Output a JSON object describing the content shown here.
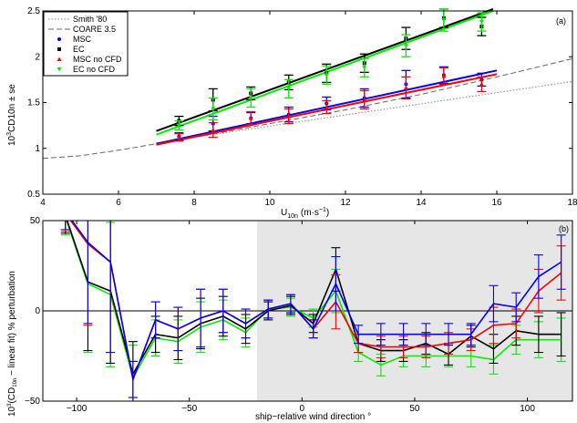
{
  "chart_data": [
    {
      "type": "line",
      "panel_label": "(a)",
      "xlabel": "U10n (m·s−1)",
      "xlabel_main": "U",
      "xlabel_sub": "10n",
      "xlabel_unit": "(m·s",
      "xlabel_unit_sup": "−1",
      "xlabel_close": ")",
      "ylabel": "10^3CD10n ± se",
      "ylabel_prefix": "10",
      "ylabel_sup": "3",
      "ylabel_rest": "CD10n ± se",
      "xlim": [
        4,
        18
      ],
      "ylim": [
        0.5,
        2.5
      ],
      "xticks": [
        "4",
        "6",
        "8",
        "10",
        "12",
        "14",
        "16",
        "18"
      ],
      "yticks": [
        "0.5",
        "1",
        "1.5",
        "2",
        "2.5"
      ],
      "grid": false,
      "legend_position": "top-left",
      "legend": [
        "Smith '80",
        "COARE 3.5",
        "MSC",
        "EC",
        "MSC no CFD",
        "EC no CFD"
      ],
      "colors": {
        "Smith '80": "#888888",
        "COARE 3.5": "#666666",
        "MSC": "#0000ff",
        "EC": "#000000",
        "MSC no CFD": "#ff0000",
        "EC no CFD": "#00ee00"
      },
      "reference_curves": [
        {
          "name": "Smith '80",
          "style": "dotted",
          "x": [
            7,
            18
          ],
          "y": [
            1.06,
            1.73
          ]
        },
        {
          "name": "COARE 3.5",
          "style": "dashed",
          "x": [
            4,
            5,
            6,
            7,
            8,
            10,
            12,
            14,
            16,
            18
          ],
          "y": [
            0.89,
            0.92,
            0.98,
            1.05,
            1.12,
            1.27,
            1.42,
            1.59,
            1.78,
            1.98
          ]
        }
      ],
      "fit_lines": [
        {
          "name": "EC",
          "x": [
            7,
            15.9
          ],
          "y": [
            1.19,
            2.52
          ]
        },
        {
          "name": "EC no CFD",
          "x": [
            7,
            15.9
          ],
          "y": [
            1.15,
            2.5
          ]
        },
        {
          "name": "MSC",
          "x": [
            7,
            16
          ],
          "y": [
            1.05,
            1.85
          ]
        },
        {
          "name": "MSC no CFD",
          "x": [
            7,
            16
          ],
          "y": [
            1.04,
            1.81
          ]
        }
      ],
      "series": [
        {
          "name": "MSC",
          "x": [
            7.6,
            8.5,
            9.5,
            10.5,
            11.5,
            12.5,
            13.6,
            14.6,
            15.6
          ],
          "y": [
            1.13,
            1.27,
            1.33,
            1.37,
            1.49,
            1.55,
            1.7,
            1.8,
            1.75
          ],
          "err": [
            0.04,
            0.08,
            0.06,
            0.08,
            0.07,
            0.1,
            0.15,
            0.09,
            0.07
          ]
        },
        {
          "name": "EC",
          "x": [
            7.6,
            8.5,
            9.5,
            10.5,
            11.5,
            12.5,
            13.6,
            14.6,
            15.6
          ],
          "y": [
            1.3,
            1.53,
            1.6,
            1.72,
            1.82,
            1.93,
            2.2,
            2.42,
            2.33
          ],
          "err": [
            0.05,
            0.12,
            0.07,
            0.08,
            0.1,
            0.1,
            0.12,
            0.1,
            0.1
          ]
        },
        {
          "name": "MSC no CFD",
          "x": [
            7.6,
            8.5,
            9.5,
            10.5,
            11.5,
            12.5,
            13.6,
            14.6,
            15.6
          ],
          "y": [
            1.12,
            1.2,
            1.33,
            1.35,
            1.45,
            1.53,
            1.66,
            1.79,
            1.7
          ],
          "err": [
            0.04,
            0.08,
            0.07,
            0.08,
            0.07,
            0.1,
            0.12,
            0.09,
            0.08
          ]
        },
        {
          "name": "EC no CFD",
          "x": [
            7.6,
            8.5,
            9.5,
            10.5,
            11.5,
            12.5,
            13.6,
            14.6,
            15.6
          ],
          "y": [
            1.25,
            1.43,
            1.55,
            1.65,
            1.8,
            1.88,
            2.12,
            2.4,
            2.38
          ],
          "err": [
            0.05,
            0.12,
            0.1,
            0.1,
            0.1,
            0.1,
            0.12,
            0.12,
            0.1
          ]
        }
      ]
    },
    {
      "type": "line",
      "panel_label": "(b)",
      "xlabel": "ship−relative wind direction °",
      "ylabel": "10^3(CD10n − linear fit) % perturbation",
      "ylabel_prefix": "10",
      "ylabel_sup": "3",
      "ylabel_rest_a": "(CD",
      "ylabel_sub": "10n",
      "ylabel_rest_b": " − linear fit) % perturbation",
      "xlim": [
        -115,
        120
      ],
      "ylim": [
        -50,
        50
      ],
      "xticks": [
        -100,
        -50,
        0,
        50,
        100
      ],
      "yticks": [
        -50,
        0,
        50
      ],
      "grid": false,
      "shaded_region_x": [
        -20,
        120
      ],
      "shaded_color": "#e6e6e6",
      "zero_line": true,
      "colors": {
        "MSC": "#0000ff",
        "MSC no CFD": "#ff0000",
        "EC": "#000000",
        "EC no CFD": "#00ee00"
      },
      "x": [
        -105,
        -95,
        -85,
        -75,
        -65,
        -55,
        -45,
        -35,
        -25,
        -15,
        -5,
        5,
        15,
        25,
        35,
        45,
        55,
        65,
        75,
        85,
        95,
        105,
        115
      ],
      "series": [
        {
          "name": "MSC",
          "y": [
            55,
            38,
            27,
            -38,
            -5,
            -10,
            -4,
            0,
            -7,
            1,
            4,
            -10,
            15,
            -13,
            -13,
            -13,
            -13,
            -13,
            -13,
            4,
            2,
            19,
            27
          ],
          "err": [
            10,
            45,
            50,
            10,
            10,
            12,
            16,
            12,
            8,
            5,
            5,
            5,
            15,
            5,
            6,
            6,
            6,
            6,
            6,
            10,
            8,
            12,
            15
          ]
        },
        {
          "name": "MSC no CFD",
          "y": [
            54,
            37,
            27,
            -38,
            -5,
            -10,
            -4,
            0,
            -7,
            1,
            4,
            -10,
            5,
            -18,
            -20,
            -20,
            -20,
            -18,
            -16,
            -8,
            -7,
            11,
            21
          ],
          "err": [
            10,
            45,
            50,
            10,
            10,
            12,
            16,
            12,
            8,
            5,
            5,
            5,
            15,
            5,
            6,
            6,
            6,
            6,
            6,
            10,
            8,
            12,
            15
          ]
        },
        {
          "name": "EC",
          "y": [
            53,
            16,
            11,
            -35,
            -13,
            -15,
            -7,
            -3,
            -10,
            0,
            3,
            -7,
            23,
            -18,
            -22,
            -22,
            -18,
            -24,
            -14,
            -21,
            -11,
            -13,
            -13
          ],
          "err": [
            10,
            38,
            40,
            18,
            10,
            12,
            14,
            11,
            8,
            5,
            5,
            5,
            12,
            5,
            6,
            6,
            6,
            6,
            6,
            8,
            8,
            10,
            12
          ]
        },
        {
          "name": "EC no CFD",
          "y": [
            52,
            15,
            9,
            -37,
            -15,
            -17,
            -9,
            -5,
            -12,
            1,
            2,
            -4,
            11,
            -23,
            -30,
            -25,
            -25,
            -25,
            -25,
            -27,
            -16,
            -16,
            -16
          ],
          "err": [
            10,
            38,
            40,
            18,
            10,
            12,
            14,
            11,
            8,
            5,
            5,
            5,
            12,
            5,
            6,
            6,
            6,
            6,
            6,
            8,
            8,
            10,
            12
          ]
        }
      ]
    }
  ]
}
